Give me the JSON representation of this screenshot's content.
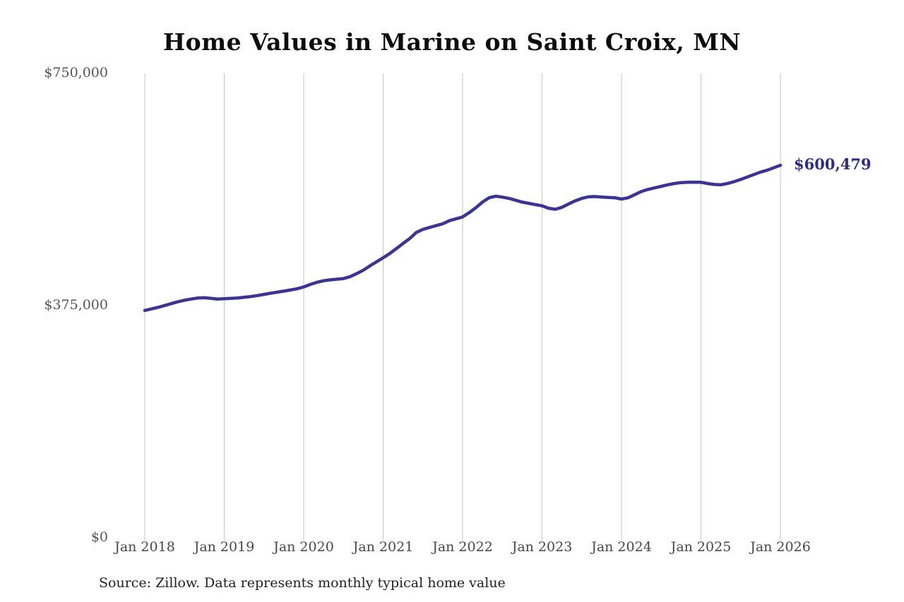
{
  "chart": {
    "source_note": "Source: Zillow. Data represents monthly typical home value"
  },
  "chart_data": {
    "type": "line",
    "title": "Home Values in Marine on Saint Croix, MN",
    "series_name": "Monthly typical home value",
    "x_start": "Jan 2018",
    "x_end": "Jan 2026",
    "frequency": "monthly",
    "x_tick_labels": [
      "Jan 2018",
      "Jan 2019",
      "Jan 2020",
      "Jan 2021",
      "Jan 2022",
      "Jan 2023",
      "Jan 2024",
      "Jan 2025",
      "Jan 2026"
    ],
    "y_ticks": [
      {
        "label": "$750,000",
        "value": 750000
      },
      {
        "label": "$375,000",
        "value": 375000
      },
      {
        "label": "$0",
        "value": 0
      }
    ],
    "ylim": [
      0,
      750000
    ],
    "grid": "vertical-only",
    "legend": "none",
    "end_label": "$600,479",
    "end_value": 600479,
    "line_color": "#3c3493",
    "label_color": "#2e2c87",
    "grid_color": "#c6c6c6",
    "values": [
      366000,
      368500,
      371000,
      374000,
      377000,
      380000,
      382500,
      384500,
      386000,
      386500,
      385500,
      384500,
      385000,
      385500,
      386200,
      387200,
      388500,
      390000,
      392000,
      393800,
      395500,
      397200,
      399000,
      401000,
      404000,
      408000,
      411500,
      414000,
      415500,
      416500,
      417500,
      420500,
      425500,
      431000,
      438000,
      444500,
      451000,
      458000,
      466000,
      474000,
      482000,
      492000,
      497000,
      500000,
      503000,
      506000,
      511000,
      514000,
      517000,
      524000,
      532000,
      541000,
      548000,
      550500,
      549000,
      547000,
      544000,
      541000,
      539000,
      537000,
      535000,
      531000,
      529500,
      532500,
      538000,
      543000,
      547000,
      549500,
      550000,
      549000,
      548500,
      548000,
      546000,
      548000,
      553000,
      558000,
      561500,
      564000,
      566500,
      569000,
      571000,
      572500,
      573000,
      573200,
      573000,
      571000,
      569500,
      569000,
      571000,
      574000,
      577500,
      581500,
      585500,
      589500,
      592500,
      596500,
      600479
    ]
  }
}
